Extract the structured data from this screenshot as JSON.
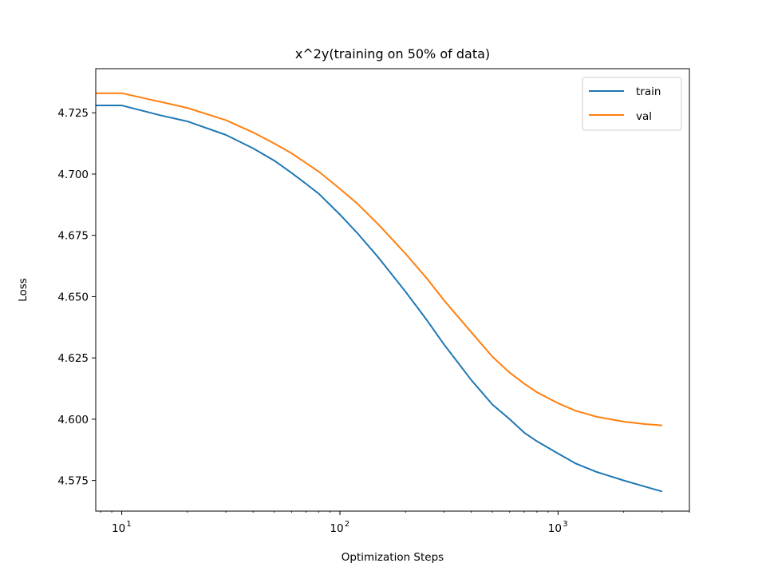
{
  "chart_data": {
    "type": "line",
    "title": "x^2y(training on 50% of data)",
    "xlabel": "Optimization Steps",
    "ylabel": "Loss",
    "xscale": "log",
    "xlim": [
      7.6,
      4000
    ],
    "ylim": [
      4.5625,
      4.743
    ],
    "grid": false,
    "legend_position": "top-right",
    "xticks": [
      {
        "value": 10,
        "base": "10",
        "exp": "1"
      },
      {
        "value": 100,
        "base": "10",
        "exp": "2"
      },
      {
        "value": 1000,
        "base": "10",
        "exp": "3"
      }
    ],
    "yticks": [
      {
        "value": 4.575,
        "label": "4.575"
      },
      {
        "value": 4.6,
        "label": "4.600"
      },
      {
        "value": 4.625,
        "label": "4.625"
      },
      {
        "value": 4.65,
        "label": "4.650"
      },
      {
        "value": 4.675,
        "label": "4.675"
      },
      {
        "value": 4.7,
        "label": "4.700"
      },
      {
        "value": 4.725,
        "label": "4.725"
      }
    ],
    "series": [
      {
        "name": "train",
        "color": "#1f77b4",
        "points": [
          [
            7.6,
            4.728
          ],
          [
            10,
            4.728
          ],
          [
            15,
            4.724
          ],
          [
            20,
            4.7215
          ],
          [
            30,
            4.716
          ],
          [
            40,
            4.7105
          ],
          [
            50,
            4.7055
          ],
          [
            60,
            4.7005
          ],
          [
            70,
            4.696
          ],
          [
            80,
            4.692
          ],
          [
            100,
            4.6835
          ],
          [
            120,
            4.676
          ],
          [
            150,
            4.666
          ],
          [
            200,
            4.652
          ],
          [
            250,
            4.6405
          ],
          [
            300,
            4.6305
          ],
          [
            400,
            4.616
          ],
          [
            500,
            4.606
          ],
          [
            600,
            4.6
          ],
          [
            700,
            4.5945
          ],
          [
            800,
            4.591
          ],
          [
            1000,
            4.586
          ],
          [
            1200,
            4.582
          ],
          [
            1500,
            4.5785
          ],
          [
            2000,
            4.575
          ],
          [
            2500,
            4.5725
          ],
          [
            3000,
            4.5705
          ]
        ]
      },
      {
        "name": "val",
        "color": "#ff7f0e",
        "points": [
          [
            7.6,
            4.733
          ],
          [
            10,
            4.733
          ],
          [
            15,
            4.7295
          ],
          [
            20,
            4.727
          ],
          [
            30,
            4.722
          ],
          [
            40,
            4.717
          ],
          [
            50,
            4.7125
          ],
          [
            60,
            4.7085
          ],
          [
            70,
            4.7045
          ],
          [
            80,
            4.701
          ],
          [
            100,
            4.694
          ],
          [
            120,
            4.688
          ],
          [
            150,
            4.6795
          ],
          [
            200,
            4.6675
          ],
          [
            250,
            4.6575
          ],
          [
            300,
            4.6485
          ],
          [
            400,
            4.6355
          ],
          [
            500,
            4.6255
          ],
          [
            600,
            4.619
          ],
          [
            700,
            4.6145
          ],
          [
            800,
            4.611
          ],
          [
            1000,
            4.6065
          ],
          [
            1200,
            4.6035
          ],
          [
            1500,
            4.601
          ],
          [
            2000,
            4.599
          ],
          [
            2500,
            4.598
          ],
          [
            3000,
            4.5975
          ]
        ]
      }
    ]
  }
}
